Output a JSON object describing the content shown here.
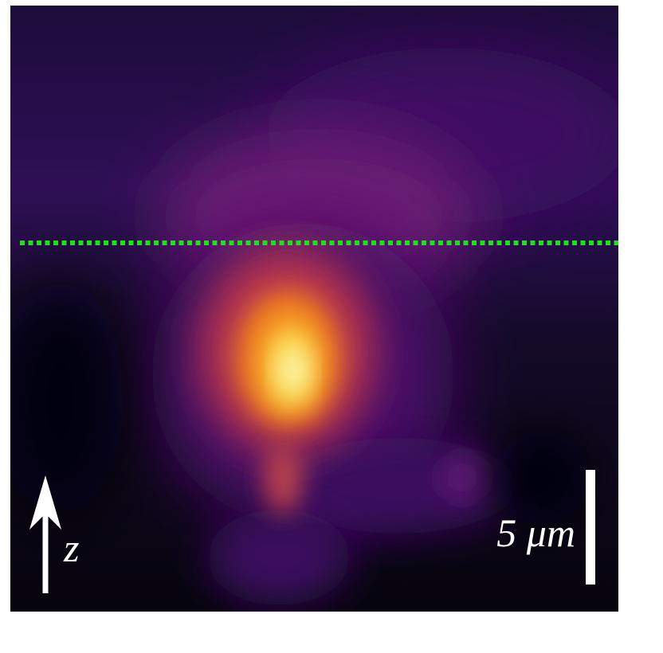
{
  "scale_bar": {
    "label": "5 μm"
  },
  "axis_label": "z"
}
